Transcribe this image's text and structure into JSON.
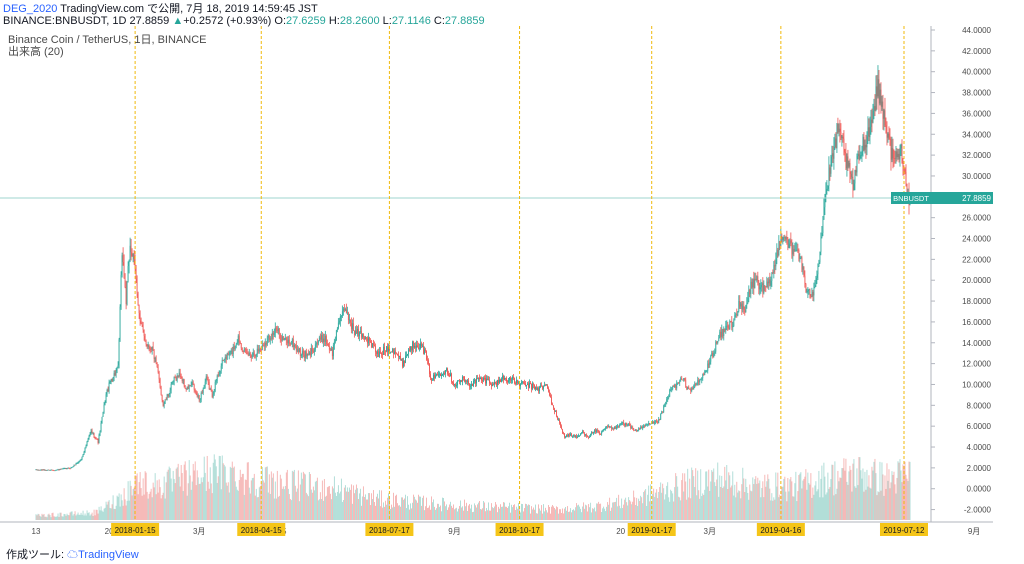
{
  "header": {
    "author": "DEG_2020",
    "published_text": "TradingView.com で公開, 7月 18, 2019 14:59:45 JST",
    "symbol_line": "BINANCE:BNBUSDT, 1D 27.8859",
    "change": "+0.2572 (+0.93%)",
    "open_label": "O:",
    "open": "27.6259",
    "high_label": "H:",
    "high": "28.2600",
    "low_label": "L:",
    "low": "27.1146",
    "close_label": "C:",
    "close": "27.8859"
  },
  "legend": {
    "series_title": "Binance Coin / TetherUS, 1日, BINANCE",
    "volume_title": "出来高 (20)"
  },
  "price_tag": {
    "symbol": "BNBUSDT",
    "value": "27.8859"
  },
  "footer": {
    "prefix": "作成ツール:",
    "brand": "TradingView"
  },
  "colors": {
    "up": "#26a69a",
    "down": "#ef5350",
    "up_volume": "#9fd6cf",
    "down_volume": "#f3a8a6",
    "marker_line": "#f0b90b",
    "marker_bg": "#f5c518",
    "price_line": "#9fd6cf"
  },
  "chart_data": {
    "type": "candlestick",
    "title": "Binance Coin / TetherUS, 1日, BINANCE",
    "y_ticks": [
      "44.0000",
      "42.0000",
      "40.0000",
      "38.0000",
      "36.0000",
      "34.0000",
      "32.0000",
      "30.0000",
      "28.0000",
      "26.0000",
      "24.0000",
      "22.0000",
      "20.0000",
      "18.0000",
      "16.0000",
      "14.0000",
      "12.0000",
      "10.0000",
      "8.0000",
      "6.0000",
      "4.0000",
      "2.0000",
      "0.0000",
      "-2.0000"
    ],
    "ylim": [
      -3,
      44
    ],
    "x_ticks": [
      {
        "label": "13",
        "day": 0
      },
      {
        "label": "20",
        "day": 73
      },
      {
        "label": "3月",
        "day": 163
      },
      {
        "label": "5",
        "day": 248
      },
      {
        "label": "7",
        "day": 334
      },
      {
        "label": "9月",
        "day": 418
      },
      {
        "label": "20",
        "day": 584
      },
      {
        "label": "3月",
        "day": 673
      },
      {
        "label": "5",
        "day": 764
      },
      {
        "label": "9月",
        "day": 937
      }
    ],
    "date_markers": [
      {
        "label": "2018-01-15",
        "day": 99
      },
      {
        "label": "2018-04-15",
        "day": 225
      },
      {
        "label": "2018-07-17",
        "day": 353
      },
      {
        "label": "2018-10-17",
        "day": 483
      },
      {
        "label": "2019-01-17",
        "day": 615
      },
      {
        "label": "2019-04-16",
        "day": 744
      },
      {
        "label": "2019-07-12",
        "day": 867
      }
    ],
    "last_day": 873,
    "price_path": [
      [
        0,
        1.8
      ],
      [
        20,
        1.8
      ],
      [
        35,
        2.0
      ],
      [
        45,
        2.8
      ],
      [
        55,
        5.5
      ],
      [
        62,
        4.5
      ],
      [
        70,
        9.0
      ],
      [
        75,
        10.5
      ],
      [
        82,
        11.5
      ],
      [
        86,
        22.8
      ],
      [
        90,
        18.0
      ],
      [
        94,
        23.5
      ],
      [
        99,
        21.0
      ],
      [
        104,
        16.0
      ],
      [
        110,
        14.0
      ],
      [
        116,
        13.5
      ],
      [
        122,
        11.0
      ],
      [
        127,
        8.0
      ],
      [
        132,
        9.0
      ],
      [
        138,
        10.5
      ],
      [
        144,
        11.0
      ],
      [
        150,
        9.5
      ],
      [
        156,
        10.0
      ],
      [
        163,
        8.5
      ],
      [
        170,
        10.5
      ],
      [
        176,
        9.0
      ],
      [
        182,
        11.0
      ],
      [
        188,
        12.5
      ],
      [
        195,
        13.0
      ],
      [
        202,
        14.5
      ],
      [
        210,
        12.8
      ],
      [
        218,
        13.0
      ],
      [
        225,
        13.5
      ],
      [
        232,
        14.5
      ],
      [
        240,
        15.2
      ],
      [
        248,
        14.2
      ],
      [
        256,
        14.0
      ],
      [
        264,
        13.0
      ],
      [
        272,
        12.7
      ],
      [
        280,
        14.0
      ],
      [
        288,
        14.5
      ],
      [
        296,
        13.0
      ],
      [
        303,
        16.5
      ],
      [
        310,
        17.0
      ],
      [
        318,
        15.0
      ],
      [
        326,
        14.8
      ],
      [
        334,
        14.0
      ],
      [
        342,
        12.8
      ],
      [
        350,
        13.5
      ],
      [
        358,
        13.3
      ],
      [
        366,
        12.0
      ],
      [
        373,
        13.5
      ],
      [
        380,
        14.0
      ],
      [
        388,
        13.2
      ],
      [
        395,
        10.5
      ],
      [
        402,
        11.0
      ],
      [
        410,
        11.5
      ],
      [
        418,
        10.0
      ],
      [
        426,
        10.5
      ],
      [
        434,
        10.0
      ],
      [
        442,
        10.5
      ],
      [
        450,
        10.4
      ],
      [
        458,
        10.0
      ],
      [
        466,
        10.6
      ],
      [
        474,
        10.5
      ],
      [
        482,
        10.1
      ],
      [
        492,
        9.9
      ],
      [
        502,
        9.6
      ],
      [
        510,
        9.9
      ],
      [
        516,
        8.0
      ],
      [
        522,
        6.5
      ],
      [
        528,
        5.0
      ],
      [
        534,
        5.2
      ],
      [
        540,
        4.9
      ],
      [
        546,
        5.4
      ],
      [
        552,
        5.0
      ],
      [
        558,
        5.6
      ],
      [
        564,
        5.2
      ],
      [
        570,
        6.0
      ],
      [
        576,
        5.7
      ],
      [
        584,
        6.3
      ],
      [
        592,
        6.1
      ],
      [
        600,
        5.5
      ],
      [
        608,
        6.0
      ],
      [
        615,
        6.2
      ],
      [
        622,
        6.5
      ],
      [
        628,
        8.0
      ],
      [
        634,
        9.5
      ],
      [
        640,
        10.0
      ],
      [
        646,
        10.5
      ],
      [
        652,
        9.5
      ],
      [
        658,
        9.8
      ],
      [
        664,
        10.5
      ],
      [
        670,
        11.5
      ],
      [
        676,
        13.0
      ],
      [
        682,
        14.5
      ],
      [
        690,
        15.5
      ],
      [
        696,
        16.0
      ],
      [
        702,
        17.5
      ],
      [
        708,
        17.0
      ],
      [
        714,
        19.5
      ],
      [
        720,
        20.0
      ],
      [
        726,
        19.0
      ],
      [
        732,
        19.5
      ],
      [
        738,
        21.5
      ],
      [
        744,
        24.5
      ],
      [
        750,
        24.0
      ],
      [
        756,
        22.5
      ],
      [
        760,
        23.0
      ],
      [
        764,
        22.0
      ],
      [
        770,
        18.5
      ],
      [
        776,
        19.0
      ],
      [
        782,
        22.0
      ],
      [
        788,
        28.0
      ],
      [
        794,
        31.0
      ],
      [
        800,
        34.0
      ],
      [
        806,
        33.0
      ],
      [
        810,
        31.0
      ],
      [
        816,
        29.0
      ],
      [
        822,
        32.0
      ],
      [
        828,
        33.5
      ],
      [
        834,
        35.0
      ],
      [
        840,
        38.5
      ],
      [
        846,
        36.5
      ],
      [
        852,
        33.0
      ],
      [
        858,
        31.5
      ],
      [
        864,
        32.5
      ],
      [
        868,
        31.0
      ],
      [
        870,
        28.0
      ],
      [
        873,
        27.8859
      ]
    ],
    "volume_path": [
      [
        0,
        -2.6
      ],
      [
        60,
        -2.3
      ],
      [
        90,
        -0.5
      ],
      [
        99,
        0.7
      ],
      [
        120,
        0.2
      ],
      [
        150,
        1.0
      ],
      [
        175,
        1.5
      ],
      [
        195,
        1.5
      ],
      [
        225,
        0.8
      ],
      [
        260,
        0.3
      ],
      [
        300,
        0.0
      ],
      [
        340,
        -1.0
      ],
      [
        380,
        -1.3
      ],
      [
        420,
        -1.6
      ],
      [
        470,
        -1.8
      ],
      [
        520,
        -2.0
      ],
      [
        560,
        -1.7
      ],
      [
        600,
        -1.0
      ],
      [
        620,
        -0.4
      ],
      [
        650,
        0.4
      ],
      [
        680,
        1.0
      ],
      [
        720,
        0.2
      ],
      [
        760,
        0.2
      ],
      [
        790,
        1.0
      ],
      [
        820,
        1.5
      ],
      [
        850,
        0.9
      ],
      [
        873,
        1.4
      ]
    ]
  }
}
